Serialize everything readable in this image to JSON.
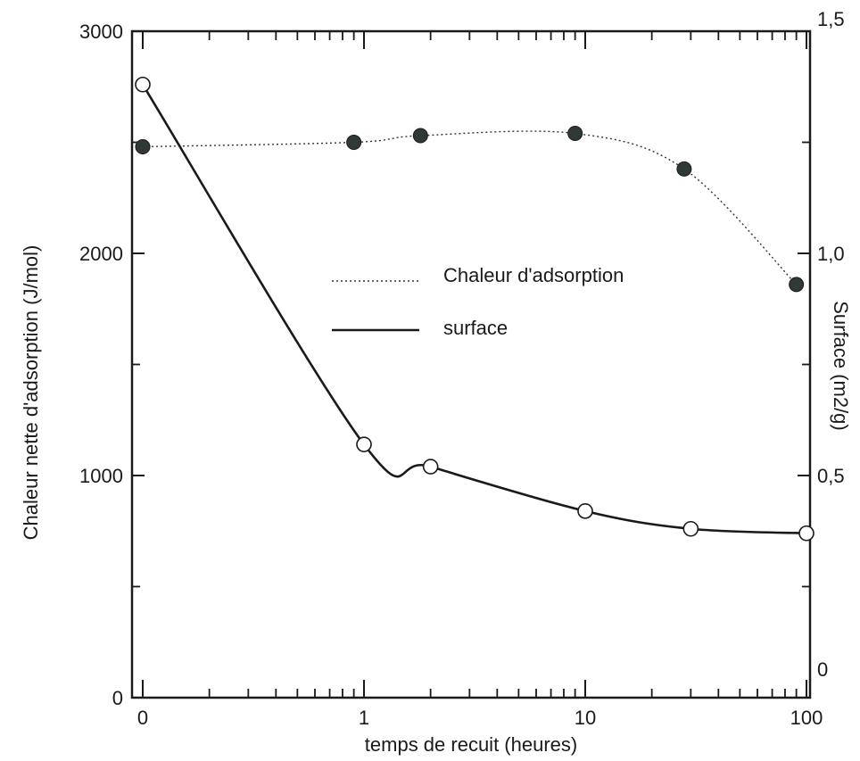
{
  "chart_data": {
    "type": "line",
    "xlabel": "temps de recuit (heures)",
    "ylabel_left": "Chaleur nette d'adsorption (J/mol)",
    "ylabel_right": "Surface (m2/g)",
    "x_scale": "log",
    "x_ticks": [
      "0",
      "1",
      "10",
      "100"
    ],
    "y_left_ticks": [
      "0",
      "1000",
      "2000",
      "3000"
    ],
    "y_right_ticks": [
      "0",
      "0,5",
      "1,0",
      "1,5"
    ],
    "ylim_left": [
      0,
      3000
    ],
    "ylim_right": [
      0,
      1.5
    ],
    "legend_placement": "center",
    "series": [
      {
        "name": "Chaleur d'adsorption",
        "axis": "left",
        "marker": "filled-circle",
        "line": "dotted",
        "x": [
          0.1,
          0.9,
          1.8,
          9,
          28,
          90
        ],
        "values": [
          2480,
          2500,
          2530,
          2540,
          2380,
          1860
        ]
      },
      {
        "name": "surface",
        "axis": "right",
        "marker": "open-circle",
        "line": "solid",
        "x": [
          0.1,
          1,
          2,
          10,
          30,
          100
        ],
        "values": [
          1.38,
          0.57,
          0.52,
          0.42,
          0.38,
          0.37
        ]
      }
    ]
  }
}
